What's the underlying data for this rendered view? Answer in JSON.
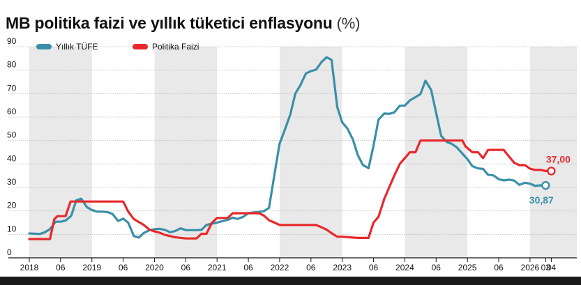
{
  "chart_data": {
    "type": "line",
    "title": "MB politika faizi ve yıllık tüketici enflasyonu",
    "unit": "(%)",
    "ylim": [
      0,
      90
    ],
    "yticks": [
      "0",
      "10",
      "20",
      "30",
      "40",
      "50",
      "60",
      "70",
      "80",
      "90"
    ],
    "xlim": [
      2018.0,
      2026.28
    ],
    "xticks": [
      {
        "x": 2018.0,
        "label": "2018"
      },
      {
        "x": 2018.5,
        "label": "06"
      },
      {
        "x": 2019.0,
        "label": "2019"
      },
      {
        "x": 2019.5,
        "label": "06"
      },
      {
        "x": 2020.0,
        "label": "2020"
      },
      {
        "x": 2020.5,
        "label": "06"
      },
      {
        "x": 2021.0,
        "label": "2021"
      },
      {
        "x": 2021.5,
        "label": "06"
      },
      {
        "x": 2022.0,
        "label": "2022"
      },
      {
        "x": 2022.5,
        "label": "06"
      },
      {
        "x": 2023.0,
        "label": "2023"
      },
      {
        "x": 2023.5,
        "label": "06"
      },
      {
        "x": 2024.0,
        "label": "2024"
      },
      {
        "x": 2024.5,
        "label": "06"
      },
      {
        "x": 2025.0,
        "label": "2025"
      },
      {
        "x": 2025.5,
        "label": "06"
      },
      {
        "x": 2026.0,
        "label": "2026"
      },
      {
        "x": 2026.25,
        "label": "03"
      },
      {
        "x": 2026.34,
        "label": "04"
      }
    ],
    "shaded_years": [
      2018,
      2020,
      2022,
      2024,
      2026
    ],
    "grid": "horizontal",
    "legend_position": "top-left",
    "series": [
      {
        "name": "Yıllık TÜFE",
        "color": "#3a8fa8",
        "end_label": "30,87",
        "points": [
          [
            2018.0,
            10.4
          ],
          [
            2018.08,
            10.3
          ],
          [
            2018.17,
            10.2
          ],
          [
            2018.25,
            10.9
          ],
          [
            2018.33,
            12.2
          ],
          [
            2018.42,
            15.4
          ],
          [
            2018.5,
            15.4
          ],
          [
            2018.58,
            15.9
          ],
          [
            2018.67,
            17.9
          ],
          [
            2018.75,
            24.5
          ],
          [
            2018.83,
            25.2
          ],
          [
            2018.92,
            21.6
          ],
          [
            2019.0,
            20.4
          ],
          [
            2019.08,
            19.7
          ],
          [
            2019.17,
            19.7
          ],
          [
            2019.25,
            19.5
          ],
          [
            2019.33,
            18.7
          ],
          [
            2019.42,
            15.7
          ],
          [
            2019.5,
            16.7
          ],
          [
            2019.58,
            15.0
          ],
          [
            2019.67,
            9.3
          ],
          [
            2019.75,
            8.6
          ],
          [
            2019.83,
            10.6
          ],
          [
            2019.92,
            11.8
          ],
          [
            2020.0,
            12.2
          ],
          [
            2020.08,
            12.4
          ],
          [
            2020.17,
            11.9
          ],
          [
            2020.25,
            10.9
          ],
          [
            2020.33,
            11.4
          ],
          [
            2020.42,
            12.6
          ],
          [
            2020.5,
            11.8
          ],
          [
            2020.58,
            11.8
          ],
          [
            2020.67,
            11.8
          ],
          [
            2020.75,
            11.9
          ],
          [
            2020.83,
            14.0
          ],
          [
            2020.92,
            14.6
          ],
          [
            2021.0,
            15.0
          ],
          [
            2021.08,
            15.6
          ],
          [
            2021.17,
            16.2
          ],
          [
            2021.25,
            17.1
          ],
          [
            2021.33,
            16.6
          ],
          [
            2021.42,
            17.5
          ],
          [
            2021.5,
            19.0
          ],
          [
            2021.58,
            19.3
          ],
          [
            2021.67,
            19.6
          ],
          [
            2021.75,
            19.9
          ],
          [
            2021.83,
            21.3
          ],
          [
            2021.92,
            36.1
          ],
          [
            2022.0,
            48.7
          ],
          [
            2022.08,
            54.4
          ],
          [
            2022.17,
            61.1
          ],
          [
            2022.25,
            70.0
          ],
          [
            2022.33,
            73.5
          ],
          [
            2022.42,
            78.6
          ],
          [
            2022.5,
            79.6
          ],
          [
            2022.58,
            80.2
          ],
          [
            2022.67,
            83.5
          ],
          [
            2022.75,
            85.5
          ],
          [
            2022.83,
            84.4
          ],
          [
            2022.92,
            64.3
          ],
          [
            2023.0,
            57.7
          ],
          [
            2023.08,
            55.2
          ],
          [
            2023.17,
            50.5
          ],
          [
            2023.25,
            43.7
          ],
          [
            2023.33,
            39.6
          ],
          [
            2023.42,
            38.2
          ],
          [
            2023.5,
            47.8
          ],
          [
            2023.58,
            58.9
          ],
          [
            2023.67,
            61.5
          ],
          [
            2023.75,
            61.4
          ],
          [
            2023.83,
            62.0
          ],
          [
            2023.92,
            64.8
          ],
          [
            2024.0,
            64.9
          ],
          [
            2024.08,
            67.1
          ],
          [
            2024.17,
            68.5
          ],
          [
            2024.25,
            69.8
          ],
          [
            2024.33,
            75.5
          ],
          [
            2024.42,
            71.6
          ],
          [
            2024.5,
            61.8
          ],
          [
            2024.58,
            52.0
          ],
          [
            2024.67,
            49.4
          ],
          [
            2024.75,
            48.6
          ],
          [
            2024.83,
            47.1
          ],
          [
            2024.92,
            44.4
          ],
          [
            2025.0,
            42.1
          ],
          [
            2025.08,
            39.1
          ],
          [
            2025.17,
            38.1
          ],
          [
            2025.25,
            37.9
          ],
          [
            2025.33,
            35.4
          ],
          [
            2025.42,
            35.1
          ],
          [
            2025.5,
            33.5
          ],
          [
            2025.58,
            33.0
          ],
          [
            2025.67,
            33.3
          ],
          [
            2025.75,
            32.9
          ],
          [
            2025.83,
            31.1
          ],
          [
            2025.92,
            32.0
          ],
          [
            2026.0,
            31.6
          ],
          [
            2026.08,
            30.7
          ],
          [
            2026.17,
            30.9
          ],
          [
            2026.25,
            30.87
          ]
        ]
      },
      {
        "name": "Politika Faizi",
        "color": "#e8282b",
        "end_label": "37,00",
        "points": [
          [
            2018.0,
            8.0
          ],
          [
            2018.33,
            8.0
          ],
          [
            2018.4,
            16.5
          ],
          [
            2018.45,
            17.75
          ],
          [
            2018.5,
            17.75
          ],
          [
            2018.58,
            17.75
          ],
          [
            2018.66,
            24.0
          ],
          [
            2019.0,
            24.0
          ],
          [
            2019.5,
            24.0
          ],
          [
            2019.58,
            19.75
          ],
          [
            2019.67,
            16.5
          ],
          [
            2019.83,
            14.0
          ],
          [
            2019.92,
            12.0
          ],
          [
            2020.0,
            11.25
          ],
          [
            2020.08,
            10.75
          ],
          [
            2020.17,
            9.75
          ],
          [
            2020.33,
            8.75
          ],
          [
            2020.5,
            8.25
          ],
          [
            2020.67,
            8.25
          ],
          [
            2020.75,
            10.25
          ],
          [
            2020.83,
            10.25
          ],
          [
            2020.92,
            15.0
          ],
          [
            2021.0,
            17.0
          ],
          [
            2021.17,
            17.0
          ],
          [
            2021.25,
            19.0
          ],
          [
            2021.67,
            19.0
          ],
          [
            2021.75,
            18.0
          ],
          [
            2021.83,
            16.0
          ],
          [
            2021.92,
            15.0
          ],
          [
            2022.0,
            14.0
          ],
          [
            2022.5,
            14.0
          ],
          [
            2022.58,
            14.0
          ],
          [
            2022.67,
            13.0
          ],
          [
            2022.75,
            12.0
          ],
          [
            2022.83,
            10.5
          ],
          [
            2022.92,
            9.0
          ],
          [
            2023.0,
            9.0
          ],
          [
            2023.25,
            8.5
          ],
          [
            2023.42,
            8.5
          ],
          [
            2023.5,
            15.0
          ],
          [
            2023.58,
            17.5
          ],
          [
            2023.67,
            25.0
          ],
          [
            2023.75,
            30.0
          ],
          [
            2023.83,
            35.0
          ],
          [
            2023.92,
            40.0
          ],
          [
            2024.0,
            42.5
          ],
          [
            2024.08,
            45.0
          ],
          [
            2024.17,
            45.0
          ],
          [
            2024.25,
            50.0
          ],
          [
            2024.5,
            50.0
          ],
          [
            2024.67,
            50.0
          ],
          [
            2024.92,
            50.0
          ],
          [
            2024.97,
            47.5
          ],
          [
            2025.08,
            45.0
          ],
          [
            2025.17,
            45.0
          ],
          [
            2025.25,
            42.5
          ],
          [
            2025.33,
            46.0
          ],
          [
            2025.5,
            46.0
          ],
          [
            2025.58,
            46.0
          ],
          [
            2025.67,
            43.0
          ],
          [
            2025.75,
            40.5
          ],
          [
            2025.83,
            39.5
          ],
          [
            2025.92,
            39.5
          ],
          [
            2026.0,
            38.0
          ],
          [
            2026.08,
            37.5
          ],
          [
            2026.17,
            37.5
          ],
          [
            2026.25,
            37.0
          ],
          [
            2026.34,
            37.0
          ]
        ]
      }
    ]
  }
}
